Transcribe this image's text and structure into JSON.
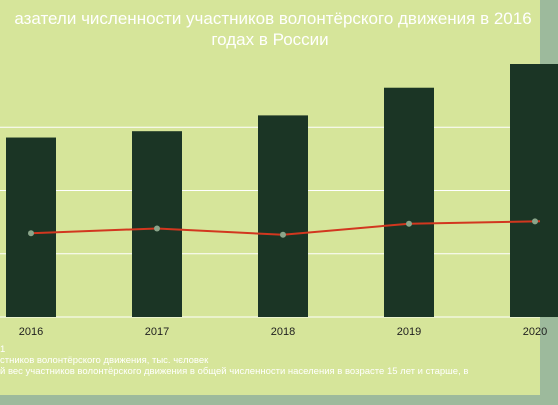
{
  "title_line1": "азатели численности участников волонтёрского движения в 2016",
  "title_line2": "годах в России",
  "footer": {
    "line1": "1",
    "line2": "стников волонтёрского движения, тыс. чєловек",
    "line3": "й вес участников волонтёрского движения в общей численности населения в возрасте 15 лет и старше, в"
  },
  "colors": {
    "background": "#d6e59a",
    "outer": "#9dba9c",
    "bar": "#1b3525",
    "line": "#d2371f",
    "marker": "#8aa58a",
    "grid": "#ffffff"
  },
  "chart_data": {
    "type": "bar",
    "categories": [
      "2016",
      "2017",
      "2018",
      "2019",
      "2020"
    ],
    "series": [
      {
        "type": "bar",
        "values": [
          2.27,
          2.35,
          2.55,
          2.9,
          3.2
        ]
      },
      {
        "type": "line",
        "values": [
          1.06,
          1.12,
          1.04,
          1.18,
          1.21
        ]
      }
    ],
    "ylim": [
      0,
      3.2
    ],
    "grid": true
  }
}
